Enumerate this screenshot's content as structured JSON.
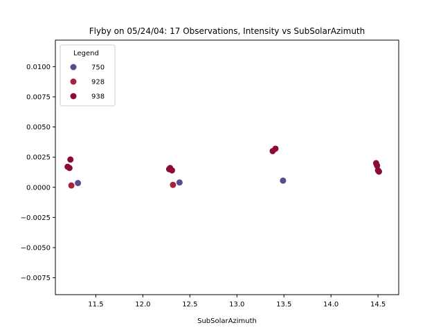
{
  "chart_data": {
    "type": "scatter",
    "title": "Flyby on 05/24/04: 17 Observations, Intensity vs SubSolarAzimuth",
    "xlabel": "SubSolarAzimuth",
    "ylabel": "",
    "xlim": [
      11.07,
      14.72
    ],
    "ylim": [
      -0.0089,
      0.0122
    ],
    "xticks": [
      11.5,
      12.0,
      12.5,
      13.0,
      13.5,
      14.0,
      14.5
    ],
    "xtick_labels": [
      "11.5",
      "12.0",
      "12.5",
      "13.0",
      "13.5",
      "14.0",
      "14.5"
    ],
    "yticks": [
      -0.0075,
      -0.005,
      -0.0025,
      0.0,
      0.0025,
      0.005,
      0.0075,
      0.01
    ],
    "ytick_labels": [
      "−0.0075",
      "−0.0050",
      "−0.0025",
      "0.0000",
      "0.0025",
      "0.0050",
      "0.0075",
      "0.0100"
    ],
    "grid": false,
    "legend": {
      "title": "Legend",
      "position": "top-left"
    },
    "series": [
      {
        "name": "750",
        "color": "#5a4a8e",
        "points": [
          {
            "x": 11.31,
            "y": 0.00035
          },
          {
            "x": 12.39,
            "y": 0.0004
          },
          {
            "x": 13.49,
            "y": 0.00055
          }
        ]
      },
      {
        "name": "928",
        "color": "#a8213f",
        "points": [
          {
            "x": 11.24,
            "y": 0.00015
          },
          {
            "x": 12.32,
            "y": 0.0002
          }
        ]
      },
      {
        "name": "938",
        "color": "#8c0a3a",
        "points": [
          {
            "x": 11.2,
            "y": 0.0017
          },
          {
            "x": 11.22,
            "y": 0.0016
          },
          {
            "x": 11.23,
            "y": 0.0023
          },
          {
            "x": 12.28,
            "y": 0.0015
          },
          {
            "x": 12.29,
            "y": 0.0016
          },
          {
            "x": 12.31,
            "y": 0.0014
          },
          {
            "x": 13.38,
            "y": 0.003
          },
          {
            "x": 13.41,
            "y": 0.0032
          },
          {
            "x": 14.48,
            "y": 0.002
          },
          {
            "x": 14.49,
            "y": 0.0018
          },
          {
            "x": 14.51,
            "y": 0.0013
          },
          {
            "x": 14.5,
            "y": 0.0014
          }
        ]
      }
    ]
  }
}
